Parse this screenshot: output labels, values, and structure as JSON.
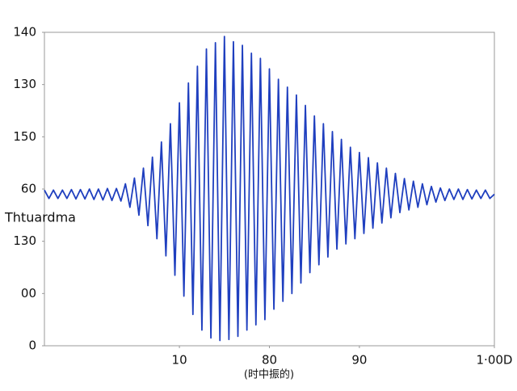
{
  "chart_data": {
    "type": "line",
    "ylabel": "Thtuardma",
    "xlabel": "(时中振的)",
    "xlim": [
      0,
      5
    ],
    "xticks": [
      {
        "value": 1.5,
        "label": "10"
      },
      {
        "value": 2.5,
        "label": "80"
      },
      {
        "value": 3.5,
        "label": "90"
      },
      {
        "value": 5,
        "label": "1·00D"
      }
    ],
    "ylim": [
      0,
      6
    ],
    "yticks": [
      0,
      {
        "value": 1,
        "label": "00"
      },
      {
        "value": 2,
        "label": "130"
      },
      {
        "value": 3,
        "label": "60"
      },
      {
        "value": 4,
        "label": "150"
      },
      {
        "value": 5,
        "label": "130"
      },
      {
        "value": 6,
        "label": "140"
      }
    ],
    "grid": false,
    "series": [
      {
        "color": "#1f3fbf",
        "x": [
          0,
          0.05,
          0.1,
          0.15,
          0.2,
          0.25,
          0.3,
          0.35,
          0.4,
          0.45,
          0.5,
          0.55,
          0.6,
          0.65,
          0.7,
          0.75,
          0.8,
          0.85,
          0.9,
          0.95,
          1,
          1.05,
          1.1,
          1.15,
          1.2,
          1.25,
          1.3,
          1.35,
          1.4,
          1.45,
          1.5,
          1.55,
          1.6,
          1.65,
          1.7,
          1.75,
          1.8,
          1.85,
          1.9,
          1.95,
          2,
          2.05,
          2.1,
          2.15,
          2.2,
          2.25,
          2.3,
          2.35,
          2.4,
          2.45,
          2.5,
          2.55,
          2.6,
          2.65,
          2.7,
          2.75,
          2.8,
          2.85,
          2.9,
          2.95,
          3,
          3.05,
          3.1,
          3.15,
          3.2,
          3.25,
          3.3,
          3.35,
          3.4,
          3.45,
          3.5,
          3.55,
          3.6,
          3.65,
          3.7,
          3.75,
          3.8,
          3.85,
          3.9,
          3.95,
          4,
          4.05,
          4.1,
          4.15,
          4.2,
          4.25,
          4.3,
          4.35,
          4.4,
          4.45,
          4.5,
          4.55,
          4.6,
          4.65,
          4.7,
          4.75,
          4.8,
          4.85,
          4.9,
          4.95,
          5
        ],
        "values": [
          2.98,
          2.82,
          2.98,
          2.82,
          2.98,
          2.82,
          2.99,
          2.81,
          2.99,
          2.81,
          3.0,
          2.8,
          3.0,
          2.79,
          3.01,
          2.78,
          3.01,
          2.77,
          3.1,
          2.65,
          3.21,
          2.5,
          3.4,
          2.3,
          3.61,
          2.05,
          3.9,
          1.72,
          4.25,
          1.35,
          4.65,
          0.95,
          5.03,
          0.6,
          5.35,
          0.3,
          5.68,
          0.15,
          5.8,
          0.1,
          5.92,
          0.12,
          5.82,
          0.18,
          5.75,
          0.3,
          5.6,
          0.4,
          5.5,
          0.5,
          5.3,
          0.7,
          5.1,
          0.85,
          4.95,
          1.0,
          4.8,
          1.2,
          4.6,
          1.4,
          4.4,
          1.55,
          4.25,
          1.7,
          4.1,
          1.85,
          3.95,
          1.95,
          3.8,
          2.05,
          3.7,
          2.15,
          3.6,
          2.25,
          3.5,
          2.35,
          3.4,
          2.45,
          3.3,
          2.55,
          3.2,
          2.6,
          3.15,
          2.65,
          3.1,
          2.7,
          3.05,
          2.75,
          3.02,
          2.78,
          3.0,
          2.8,
          3.0,
          2.8,
          2.99,
          2.81,
          2.98,
          2.82,
          2.98,
          2.82,
          2.9
        ]
      }
    ]
  }
}
